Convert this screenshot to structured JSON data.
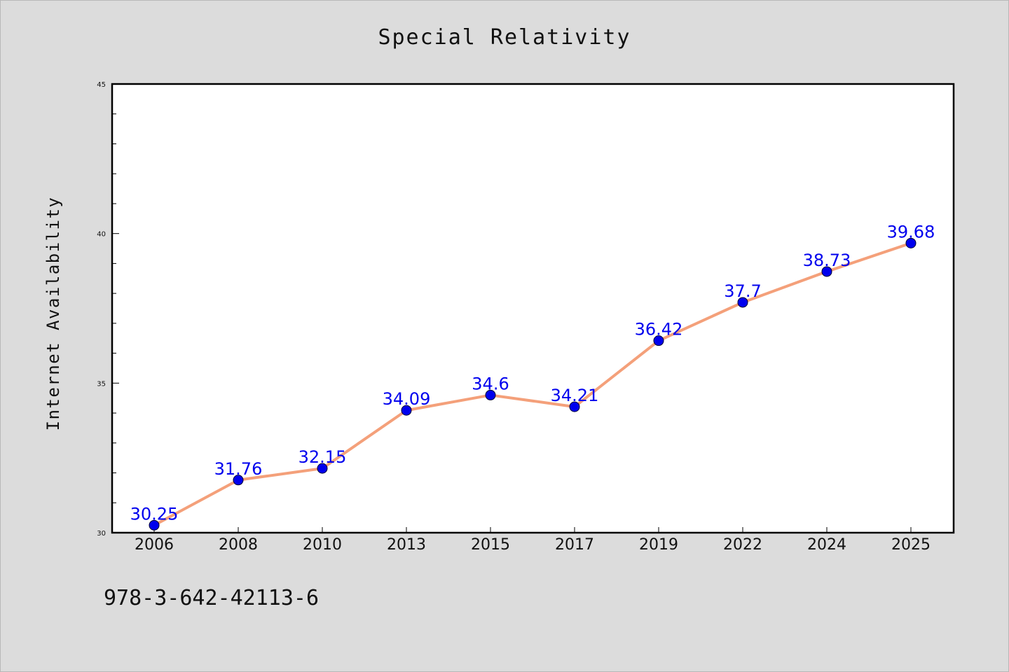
{
  "chart_data": {
    "type": "line",
    "title": "Special Relativity",
    "xlabel": "",
    "ylabel": "Internet Availability",
    "categories": [
      "2006",
      "2008",
      "2010",
      "2013",
      "2015",
      "2017",
      "2019",
      "2022",
      "2024",
      "2025"
    ],
    "series": [
      {
        "values": [
          30.25,
          31.76,
          32.15,
          34.09,
          34.6,
          34.21,
          36.42,
          37.7,
          38.73,
          39.68
        ],
        "labels": [
          "30.25",
          "31.76",
          "32.15",
          "34.09",
          "34.6",
          "34.21",
          "36.42",
          "37.7",
          "38.73",
          "39.68"
        ]
      }
    ],
    "ylim": [
      30,
      45
    ],
    "yticks": [
      "30",
      "35",
      "40",
      "45"
    ],
    "grid": false,
    "legend": "none",
    "colors": {
      "line": "#f4a07a",
      "marker": "#0000ee",
      "data_label": "#0000ee",
      "plot_background": "#ffffff",
      "page_background": "#dcdcdc"
    }
  },
  "footer": {
    "isbn": "978-3-642-42113-6"
  }
}
